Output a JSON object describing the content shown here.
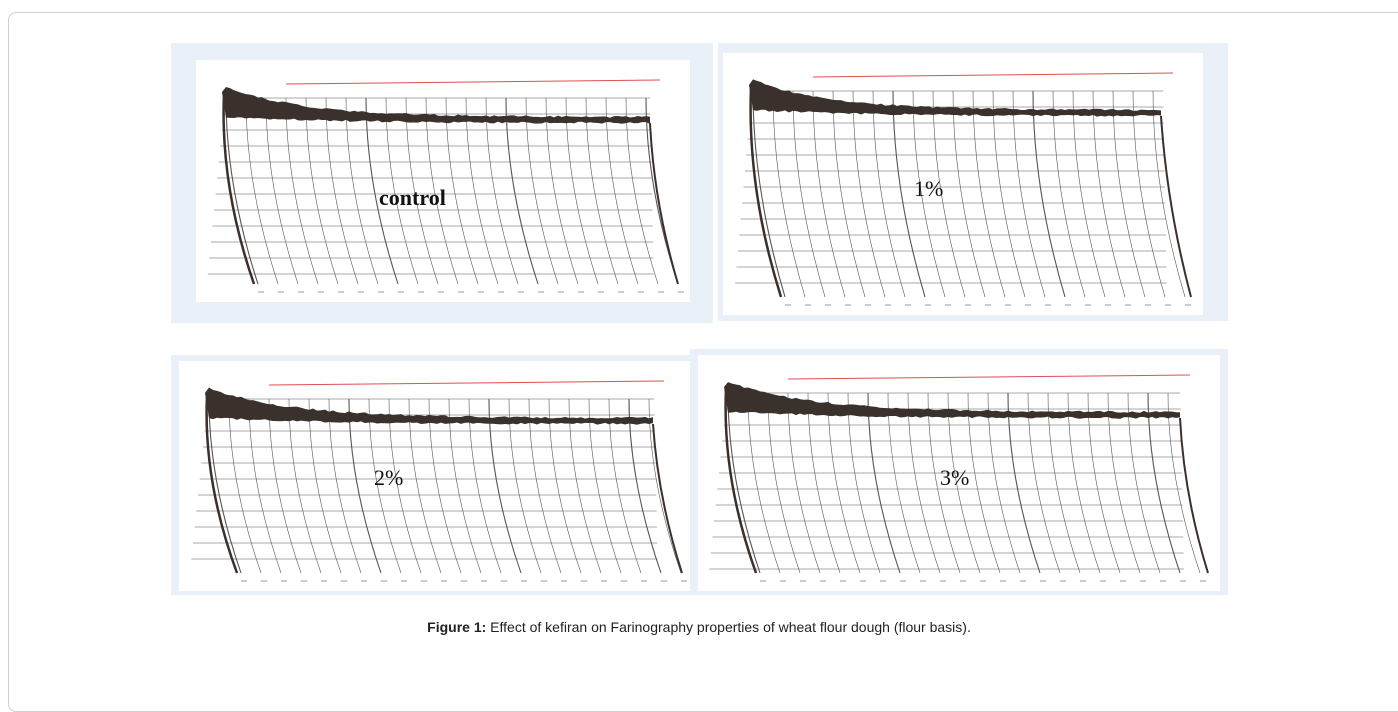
{
  "panels": [
    {
      "label": "control"
    },
    {
      "label": "1%"
    },
    {
      "label": "2%"
    },
    {
      "label": "3%"
    }
  ],
  "caption": {
    "label": "Figure 1:",
    "text": "Effect of kefiran on Farinography properties of wheat flour dough (flour basis)."
  }
}
